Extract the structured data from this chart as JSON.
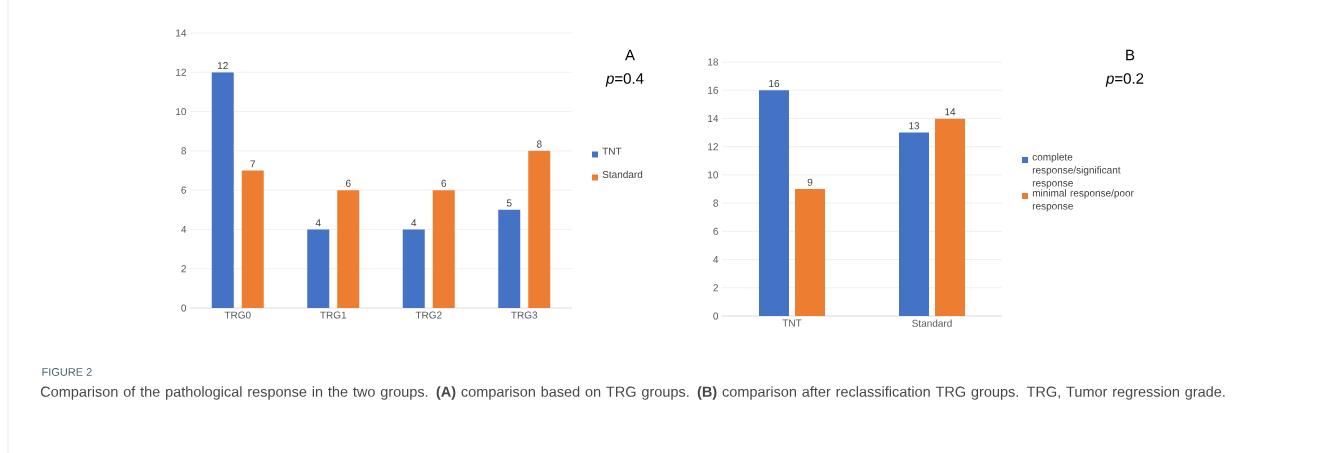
{
  "chart_data": [
    {
      "type": "bar",
      "categories": [
        "TRG0",
        "TRG1",
        "TRG2",
        "TRG3"
      ],
      "series": [
        {
          "name": "TNT",
          "color": "#4472c4",
          "values": [
            12,
            4,
            4,
            5
          ]
        },
        {
          "name": "Standard",
          "color": "#ed7d31",
          "values": [
            7,
            6,
            6,
            8
          ]
        }
      ],
      "ylim": [
        0,
        14
      ],
      "yticks": [
        0,
        2,
        4,
        6,
        8,
        10,
        12,
        14
      ],
      "grid": "y",
      "legend": "right",
      "data_labels": true,
      "annotations": [
        "A",
        "*p*=0.4",
        "FIGURE 2",
        "Comparison of the pathological response in the two groups. **(A)** comparison based on TRG groups. **(B)** comparison after reclassification TRG groups. TRG, Tumor regression grade."
      ]
    },
    {
      "type": "bar",
      "categories": [
        "TNT",
        "Standard"
      ],
      "series": [
        {
          "name": "complete response/significant response",
          "color": "#4472c4",
          "values": [
            16,
            13
          ]
        },
        {
          "name": "minimal response/poor response",
          "color": "#ed7d31",
          "values": [
            9,
            14
          ]
        }
      ],
      "ylim": [
        0,
        18
      ],
      "yticks": [
        0,
        2,
        4,
        6,
        8,
        10,
        12,
        14,
        16,
        18
      ],
      "grid": "y",
      "legend": "right",
      "data_labels": true,
      "annotations": [
        "B",
        "*p*=0.2"
      ]
    }
  ]
}
